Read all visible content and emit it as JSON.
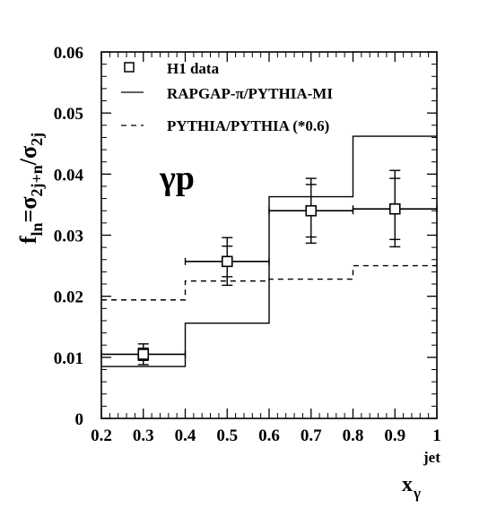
{
  "chart_data": {
    "type": "line",
    "xlim": [
      0.2,
      1.0
    ],
    "ylim": [
      0,
      0.06
    ],
    "x_ticks": [
      0.2,
      0.3,
      0.4,
      0.5,
      0.6,
      0.7,
      0.8,
      0.9,
      1.0
    ],
    "x_tick_labels": [
      "0.2",
      "0.3",
      "0.4",
      "0.5",
      "0.6",
      "0.7",
      "0.8",
      "0.9",
      "1"
    ],
    "y_ticks": [
      0,
      0.01,
      0.02,
      0.03,
      0.04,
      0.05,
      0.06
    ],
    "y_tick_labels": [
      "0",
      "0.01",
      "0.02",
      "0.03",
      "0.04",
      "0.05",
      "0.06"
    ],
    "xlabel": {
      "main": "x",
      "sub": "γ",
      "sup": "jet"
    },
    "ylabel": {
      "f": "f",
      "f_sub": "ln",
      "eq": "=σ",
      "num_sub": "2j+n",
      "slash": "/σ",
      "den_sub": "2j"
    },
    "annotation": "γp",
    "legend_position": "top-left",
    "series": [
      {
        "name": "H1 data",
        "style": "points",
        "points": [
          {
            "x": 0.3,
            "y": 0.0105,
            "x_lo": 0.2,
            "x_hi": 0.4,
            "stat_lo": 0.0095,
            "stat_hi": 0.0115,
            "tot_lo": 0.0088,
            "tot_hi": 0.0122
          },
          {
            "x": 0.5,
            "y": 0.0257,
            "x_lo": 0.4,
            "x_hi": 0.6,
            "stat_lo": 0.0232,
            "stat_hi": 0.0282,
            "tot_lo": 0.0218,
            "tot_hi": 0.0296
          },
          {
            "x": 0.7,
            "y": 0.034,
            "x_lo": 0.6,
            "x_hi": 0.8,
            "stat_lo": 0.0297,
            "stat_hi": 0.0383,
            "tot_lo": 0.0287,
            "tot_hi": 0.0393
          },
          {
            "x": 0.9,
            "y": 0.0343,
            "x_lo": 0.8,
            "x_hi": 1.0,
            "stat_lo": 0.0293,
            "stat_hi": 0.0393,
            "tot_lo": 0.0281,
            "tot_hi": 0.0406
          }
        ]
      },
      {
        "name": "RAPGAP-π/PYTHIA-MI",
        "style": "solid",
        "bins": [
          [
            0.2,
            0.4
          ],
          [
            0.4,
            0.6
          ],
          [
            0.6,
            0.8
          ],
          [
            0.8,
            1.0
          ]
        ],
        "values": [
          0.0085,
          0.0156,
          0.0363,
          0.0462
        ]
      },
      {
        "name": "PYTHIA/PYTHIA (*0.6)",
        "style": "dashed",
        "bins": [
          [
            0.2,
            0.4
          ],
          [
            0.4,
            0.6
          ],
          [
            0.6,
            0.8
          ],
          [
            0.8,
            1.0
          ]
        ],
        "values": [
          0.0194,
          0.0225,
          0.0228,
          0.025
        ]
      }
    ]
  }
}
